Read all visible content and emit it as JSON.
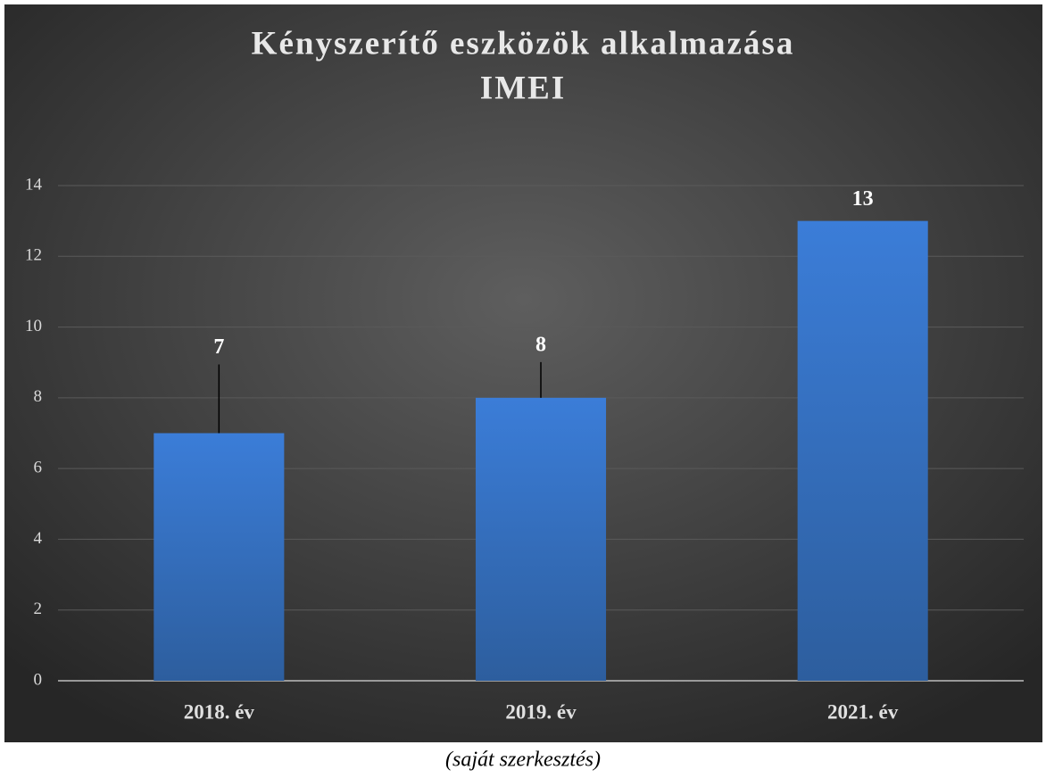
{
  "chart_data": {
    "type": "bar",
    "title": "Kényszerítő eszközök alkalmazása",
    "subtitle": "IMEI",
    "categories": [
      "2018. év",
      "2019. év",
      "2021. év"
    ],
    "values": [
      7,
      8,
      13
    ],
    "color": "#3a7bd5",
    "ylim": [
      0,
      14
    ],
    "yticks": [
      0,
      2,
      4,
      6,
      8,
      10,
      12,
      14
    ],
    "grid": true
  },
  "caption": "(saját szerkesztés)"
}
